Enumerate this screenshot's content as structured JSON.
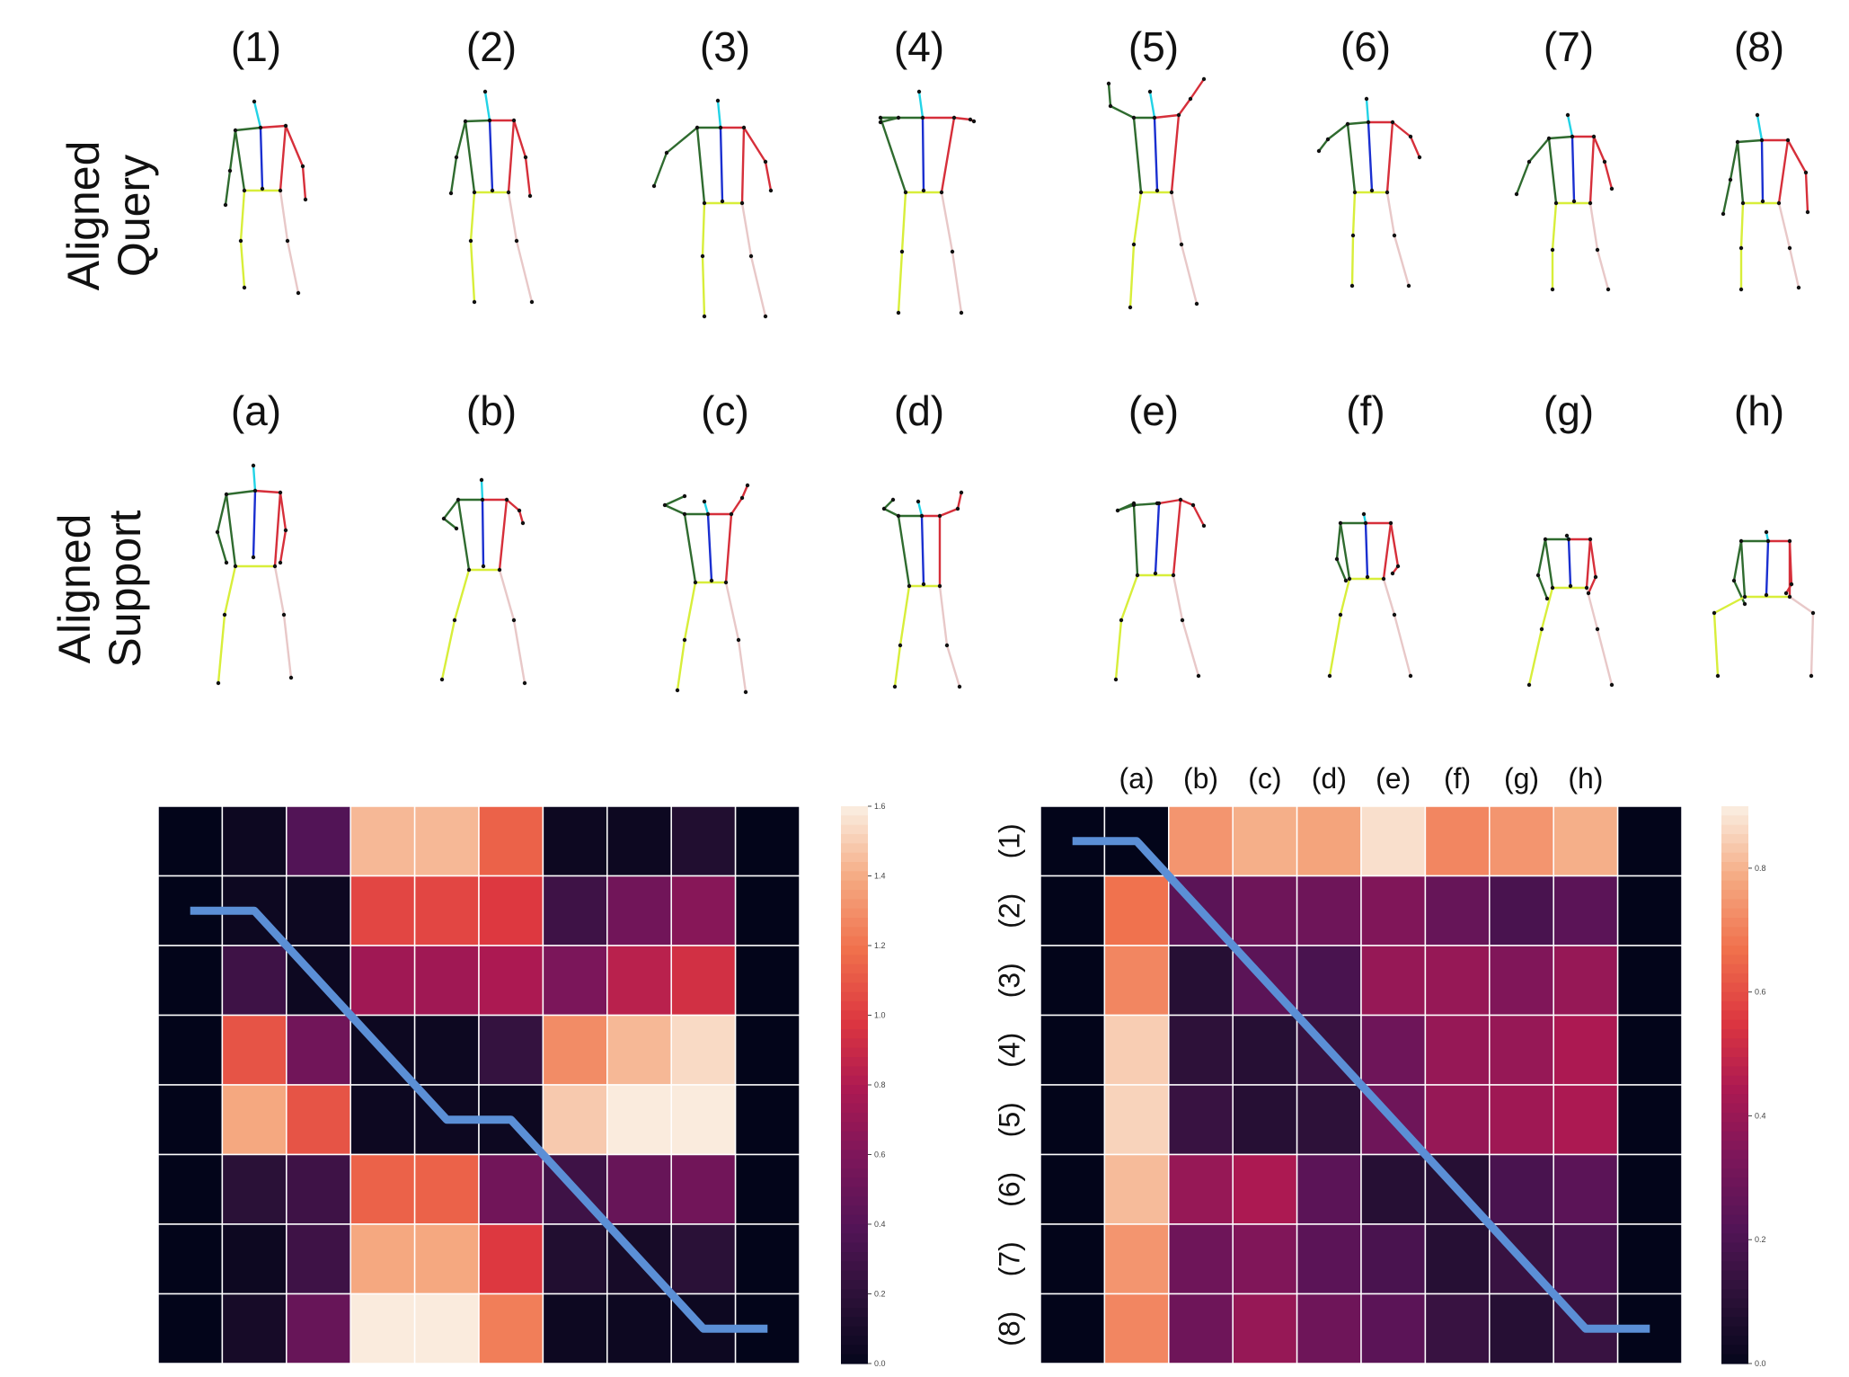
{
  "figure": {
    "query_row_label_line1": "Aligned",
    "query_row_label_line2": "Query",
    "support_row_label_line1": "Aligned",
    "support_row_label_line2": "Support",
    "query_frame_labels": [
      "(1)",
      "(2)",
      "(3)",
      "(4)",
      "(5)",
      "(6)",
      "(7)",
      "(8)"
    ],
    "support_frame_labels": [
      "(a)",
      "(b)",
      "(c)",
      "(d)",
      "(e)",
      "(f)",
      "(g)",
      "(h)"
    ]
  },
  "skeleton_colors": {
    "head": "#22d3e6",
    "spine": "#1a2fd0",
    "left_arm": "#2f6b2f",
    "right_arm": "#d62f3a",
    "left_leg": "#d8ee3a",
    "right_leg": "#e8c8c8",
    "joint": "#111111"
  },
  "chart_data": [
    {
      "type": "heatmap",
      "title": "",
      "xlabel": "",
      "ylabel": "",
      "colormap": "rocket",
      "vmin": 0,
      "vmax": 1.6,
      "colorbar_ticks": [
        "0.0",
        "0.2",
        "0.4",
        "0.6",
        "0.8",
        "1.0",
        "1.2",
        "1.4",
        "1.6"
      ],
      "x_tick_labels": [],
      "y_tick_labels": [],
      "values": [
        [
          0.0,
          0.05,
          0.4,
          1.45,
          1.45,
          1.15,
          0.05,
          0.05,
          0.15,
          0.0
        ],
        [
          0.0,
          0.05,
          0.05,
          1.05,
          1.05,
          1.0,
          0.3,
          0.55,
          0.65,
          0.0
        ],
        [
          0.0,
          0.3,
          0.05,
          0.75,
          0.75,
          0.8,
          0.6,
          0.85,
          0.95,
          0.0
        ],
        [
          0.0,
          1.1,
          0.55,
          0.05,
          0.05,
          0.25,
          1.3,
          1.45,
          1.55,
          0.0
        ],
        [
          0.0,
          1.4,
          1.1,
          0.05,
          0.05,
          0.05,
          1.5,
          1.65,
          1.75,
          0.0
        ],
        [
          0.0,
          0.2,
          0.3,
          1.15,
          1.15,
          0.55,
          0.3,
          0.5,
          0.55,
          0.0
        ],
        [
          0.0,
          0.05,
          0.3,
          1.4,
          1.4,
          1.0,
          0.15,
          0.1,
          0.2,
          0.0
        ],
        [
          0.0,
          0.1,
          0.5,
          1.6,
          1.6,
          1.25,
          0.05,
          0.05,
          0.05,
          0.0
        ]
      ],
      "alignment_path": [
        [
          0.5,
          1.5
        ],
        [
          1.5,
          1.5
        ],
        [
          4.5,
          4.5
        ],
        [
          5.5,
          4.5
        ],
        [
          8.5,
          7.5
        ],
        [
          9.5,
          7.5
        ]
      ]
    },
    {
      "type": "heatmap",
      "title": "",
      "xlabel": "",
      "ylabel": "",
      "colormap": "rocket",
      "vmin": 0,
      "vmax": 0.9,
      "colorbar_ticks": [
        "0.0",
        "0.2",
        "0.4",
        "0.6",
        "0.8"
      ],
      "x_tick_labels": [
        "",
        "(a)",
        "(b)",
        "(c)",
        "(d)",
        "(e)",
        "(f)",
        "(g)",
        "(h)",
        ""
      ],
      "y_tick_labels": [
        "(1)",
        "(2)",
        "(3)",
        "(4)",
        "(5)",
        "(6)",
        "(7)",
        "(8)"
      ],
      "values": [
        [
          0.0,
          0.0,
          0.75,
          0.8,
          0.78,
          0.88,
          0.72,
          0.75,
          0.8,
          0.0
        ],
        [
          0.0,
          0.68,
          0.25,
          0.3,
          0.3,
          0.35,
          0.28,
          0.2,
          0.25,
          0.0
        ],
        [
          0.0,
          0.72,
          0.1,
          0.25,
          0.2,
          0.4,
          0.4,
          0.35,
          0.4,
          0.0
        ],
        [
          0.0,
          0.85,
          0.12,
          0.1,
          0.15,
          0.3,
          0.4,
          0.4,
          0.45,
          0.0
        ],
        [
          0.0,
          0.86,
          0.15,
          0.1,
          0.12,
          0.3,
          0.4,
          0.42,
          0.45,
          0.0
        ],
        [
          0.0,
          0.82,
          0.4,
          0.45,
          0.25,
          0.1,
          0.1,
          0.2,
          0.25,
          0.0
        ],
        [
          0.0,
          0.75,
          0.3,
          0.35,
          0.25,
          0.2,
          0.1,
          0.15,
          0.2,
          0.0
        ],
        [
          0.0,
          0.72,
          0.3,
          0.4,
          0.3,
          0.25,
          0.15,
          0.1,
          0.15,
          0.0
        ]
      ],
      "alignment_path": [
        [
          0.5,
          0.5
        ],
        [
          1.5,
          0.5
        ],
        [
          8.5,
          7.5
        ],
        [
          9.5,
          7.5
        ]
      ]
    }
  ]
}
